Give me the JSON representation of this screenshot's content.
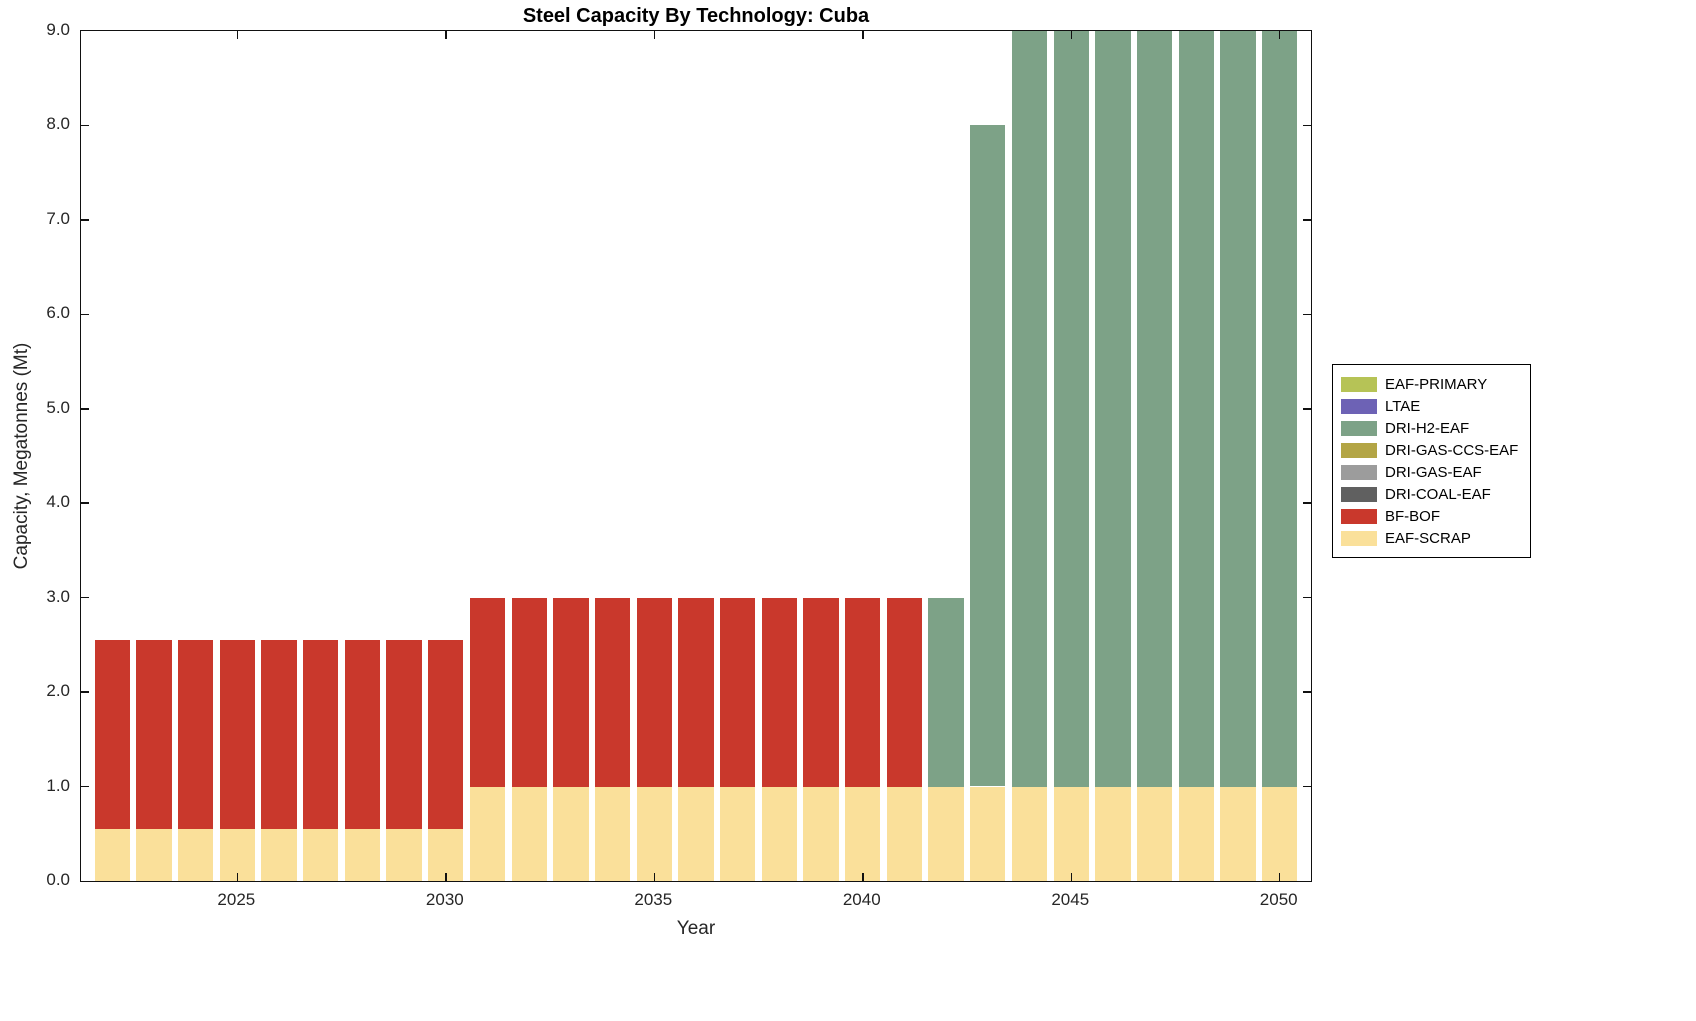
{
  "chart_data": {
    "type": "bar",
    "stacked": true,
    "title": "Steel Capacity By Technology: Cuba",
    "xlabel": "Year",
    "ylabel": "Capacity, Megatonnes (Mt)",
    "x": [
      2022,
      2023,
      2024,
      2025,
      2026,
      2027,
      2028,
      2029,
      2030,
      2031,
      2032,
      2033,
      2034,
      2035,
      2036,
      2037,
      2038,
      2039,
      2040,
      2041,
      2042,
      2043,
      2044,
      2045,
      2046,
      2047,
      2048,
      2049,
      2050
    ],
    "series": [
      {
        "name": "EAF-PRIMARY",
        "color": "#b6c356",
        "values": [
          0,
          0,
          0,
          0,
          0,
          0,
          0,
          0,
          0,
          0,
          0,
          0,
          0,
          0,
          0,
          0,
          0,
          0,
          0,
          0,
          0,
          0,
          0,
          0,
          0,
          0,
          0,
          0,
          0
        ]
      },
      {
        "name": "LTAE",
        "color": "#6d62b5",
        "values": [
          0,
          0,
          0,
          0,
          0,
          0,
          0,
          0,
          0,
          0,
          0,
          0,
          0,
          0,
          0,
          0,
          0,
          0,
          0,
          0,
          0,
          0,
          0,
          0,
          0,
          0,
          0,
          0,
          0
        ]
      },
      {
        "name": "DRI-H2-EAF",
        "color": "#7da287",
        "values": [
          0,
          0,
          0,
          0,
          0,
          0,
          0,
          0,
          0,
          0,
          0,
          0,
          0,
          0,
          0,
          0,
          0,
          0,
          0,
          0,
          2,
          7,
          8,
          8,
          8,
          8,
          8,
          8,
          8
        ]
      },
      {
        "name": "DRI-GAS-CCS-EAF",
        "color": "#b3a545",
        "values": [
          0,
          0,
          0,
          0,
          0,
          0,
          0,
          0,
          0,
          0,
          0,
          0,
          0,
          0,
          0,
          0,
          0,
          0,
          0,
          0,
          0,
          0,
          0,
          0,
          0,
          0,
          0,
          0,
          0
        ]
      },
      {
        "name": "DRI-GAS-EAF",
        "color": "#9c9c9c",
        "values": [
          0,
          0,
          0,
          0,
          0,
          0,
          0,
          0,
          0,
          0,
          0,
          0,
          0,
          0,
          0,
          0,
          0,
          0,
          0,
          0,
          0,
          0,
          0,
          0,
          0,
          0,
          0,
          0,
          0
        ]
      },
      {
        "name": "DRI-COAL-EAF",
        "color": "#606060",
        "values": [
          0,
          0,
          0,
          0,
          0,
          0,
          0,
          0,
          0,
          0,
          0,
          0,
          0,
          0,
          0,
          0,
          0,
          0,
          0,
          0,
          0,
          0,
          0,
          0,
          0,
          0,
          0,
          0,
          0
        ]
      },
      {
        "name": "BF-BOF",
        "color": "#c9382c",
        "values": [
          2,
          2,
          2,
          2,
          2,
          2,
          2,
          2,
          2,
          2,
          2,
          2,
          2,
          2,
          2,
          2,
          2,
          2,
          2,
          2,
          0,
          0,
          0,
          0,
          0,
          0,
          0,
          0,
          0
        ]
      },
      {
        "name": "EAF-SCRAP",
        "color": "#fae09a",
        "values": [
          0.55,
          0.55,
          0.55,
          0.55,
          0.55,
          0.55,
          0.55,
          0.55,
          0.55,
          1,
          1,
          1,
          1,
          1,
          1,
          1,
          1,
          1,
          1,
          1,
          1,
          1,
          1,
          1,
          1,
          1,
          1,
          1,
          1
        ]
      }
    ],
    "ylim": [
      0,
      9
    ],
    "xlim": [
      2021.25,
      2050.75
    ],
    "bar_width": 0.85,
    "yticks": {
      "values": [
        0,
        1,
        2,
        3,
        4,
        5,
        6,
        7,
        8,
        9
      ],
      "labels": [
        "0.0",
        "1.0",
        "2.0",
        "3.0",
        "4.0",
        "5.0",
        "6.0",
        "7.0",
        "8.0",
        "9.0"
      ]
    },
    "xticks": {
      "values": [
        2025,
        2030,
        2035,
        2040,
        2045,
        2050
      ],
      "labels": [
        "2025",
        "2030",
        "2035",
        "2040",
        "2045",
        "2050"
      ]
    },
    "legend_position": "right-outside",
    "grid": false
  }
}
